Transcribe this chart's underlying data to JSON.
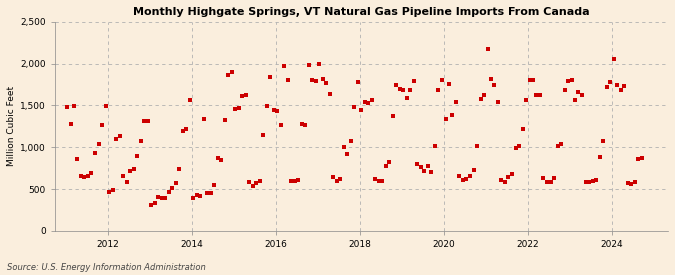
{
  "title": "Monthly Highgate Springs, VT Natural Gas Pipeline Imports From Canada",
  "ylabel": "Million Cubic Feet",
  "source": "Source: U.S. Energy Information Administration",
  "background_color": "#faeedd",
  "plot_background": "#faeedd",
  "marker_color": "#cc0000",
  "marker_size": 5,
  "ylim": [
    0,
    2500
  ],
  "yticks": [
    0,
    500,
    1000,
    1500,
    2000,
    2500
  ],
  "ytick_labels": [
    "0",
    "500",
    "1,000",
    "1,500",
    "2,000",
    "2,500"
  ],
  "x_start_year": 2011,
  "x_end_year": 2025,
  "xticks": [
    2012,
    2014,
    2016,
    2018,
    2020,
    2022,
    2024
  ],
  "values": [
    1480,
    1280,
    1490,
    860,
    650,
    640,
    660,
    690,
    930,
    1040,
    1270,
    1490,
    470,
    490,
    1100,
    1140,
    650,
    580,
    710,
    740,
    890,
    1080,
    1310,
    1310,
    310,
    330,
    400,
    390,
    390,
    460,
    510,
    570,
    740,
    1200,
    1220,
    1560,
    390,
    430,
    420,
    1340,
    450,
    450,
    550,
    870,
    850,
    1320,
    1860,
    1900,
    1460,
    1470,
    1610,
    1630,
    580,
    540,
    570,
    590,
    1150,
    1490,
    1840,
    1440,
    1430,
    1260,
    1970,
    1800,
    590,
    600,
    610,
    1280,
    1260,
    1990,
    1800,
    1790,
    2000,
    1820,
    1770,
    1640,
    640,
    590,
    620,
    1000,
    920,
    1080,
    1480,
    1780,
    1450,
    1540,
    1530,
    1570,
    620,
    600,
    590,
    770,
    820,
    1370,
    1750,
    1700,
    1690,
    1590,
    1690,
    1790,
    800,
    760,
    720,
    780,
    700,
    1010,
    1690,
    1800,
    1340,
    1760,
    1380,
    1540,
    650,
    610,
    620,
    660,
    730,
    1010,
    1580,
    1620,
    2170,
    1820,
    1740,
    1540,
    610,
    580,
    640,
    680,
    990,
    1010,
    1220,
    1570,
    1810,
    1810,
    1630,
    1620,
    630,
    580,
    580,
    630,
    1010,
    1040,
    1680,
    1790,
    1800,
    1570,
    1660,
    1620,
    580,
    580,
    590,
    610,
    880,
    1080,
    1720,
    1780,
    2050,
    1740,
    1690,
    1730,
    570,
    560,
    580,
    860,
    870
  ],
  "start_month": 1,
  "start_year": 2011
}
